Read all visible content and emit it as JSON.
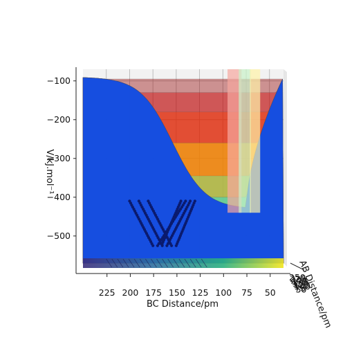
{
  "chart_data": {
    "type": "surface-3d",
    "title": "",
    "zlabel": "V/kJ.mol⁻¹",
    "xlabel": "BC Distance/pm",
    "ylabel": "AB Distance/pm",
    "z_ticks": [
      -100,
      -200,
      -300,
      -400,
      -500
    ],
    "z_tick_labels": [
      "−100",
      "−200",
      "−300",
      "−400",
      "−500"
    ],
    "zlim": [
      -570,
      -70
    ],
    "x_ticks": [
      225,
      200,
      175,
      150,
      125,
      100,
      75,
      50
    ],
    "x_tick_labels": [
      "225",
      "200",
      "175",
      "150",
      "125",
      "100",
      "75",
      "50"
    ],
    "xlim": [
      250,
      35
    ],
    "y_tick_labels": [
      "250",
      "225",
      "200",
      "175",
      "150",
      "125",
      "100",
      "75",
      "50"
    ],
    "surface": {
      "colormap": "jet",
      "alpha": 0.4,
      "contour_levels": [
        -520,
        -480,
        -450,
        -400,
        -345,
        -260,
        -180,
        -130,
        -95
      ],
      "plateau_z": -90,
      "minimum": {
        "x": 75,
        "z": -430
      },
      "edge_wall_z": -440
    },
    "trajectory": {
      "color": "#0a1a6e",
      "segments": [
        {
          "x_start": 190,
          "z_start": -410,
          "x_end": 165,
          "z_end": -525
        },
        {
          "x_start": 180,
          "z_start": -410,
          "x_end": 155,
          "z_end": -525
        },
        {
          "x_start": 200,
          "z_start": -410,
          "x_end": 175,
          "z_end": -525
        },
        {
          "x_start": 170,
          "z_start": -525,
          "x_end": 140,
          "z_end": -410
        },
        {
          "x_start": 160,
          "z_start": -525,
          "x_end": 135,
          "z_end": -410
        },
        {
          "x_start": 150,
          "z_start": -525,
          "x_end": 130,
          "z_end": -410
        },
        {
          "x_start": 165,
          "z_start": -520,
          "x_end": 145,
          "z_end": -410
        }
      ]
    }
  }
}
